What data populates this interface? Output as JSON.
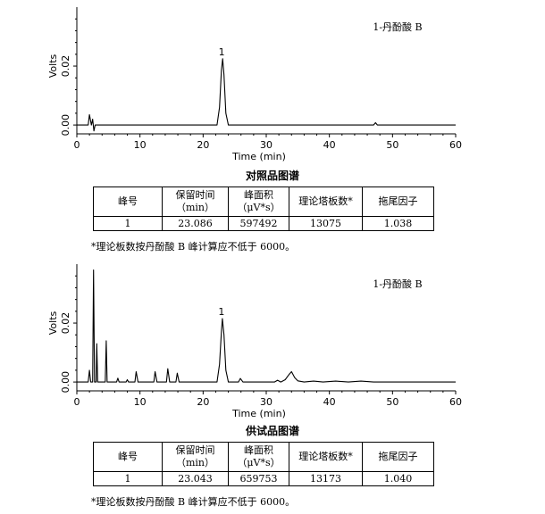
{
  "chart_data": [
    {
      "type": "line",
      "title": "1-丹酚酸 B",
      "xlabel": "Time (min)",
      "ylabel": "Volts",
      "xlim": [
        0,
        60
      ],
      "ylim": [
        -0.003,
        0.04
      ],
      "x_ticks": [
        "0",
        "10",
        "20",
        "30",
        "40",
        "50",
        "60"
      ],
      "y_ticks": [
        "0.00",
        "0.02"
      ],
      "peaks": [
        {
          "label": "1",
          "x": 23.086,
          "y": 0.0225
        }
      ],
      "series": [
        {
          "values": [
            [
              0,
              0.0
            ],
            [
              1.8,
              0.0
            ],
            [
              2.0,
              0.0035
            ],
            [
              2.3,
              0.0
            ],
            [
              2.5,
              0.002
            ],
            [
              2.7,
              -0.002
            ],
            [
              2.9,
              0.0
            ],
            [
              22.2,
              0.0
            ],
            [
              22.6,
              0.006
            ],
            [
              22.9,
              0.0185
            ],
            [
              23.1,
              0.0225
            ],
            [
              23.3,
              0.017
            ],
            [
              23.6,
              0.004
            ],
            [
              24.0,
              0.0
            ],
            [
              47.0,
              0.0
            ],
            [
              47.3,
              0.0008
            ],
            [
              47.6,
              0.0
            ],
            [
              60,
              0.0
            ]
          ]
        }
      ]
    },
    {
      "type": "line",
      "title": "1-丹酚酸 B",
      "xlabel": "Time (min)",
      "ylabel": "Volts",
      "xlim": [
        0,
        60
      ],
      "ylim": [
        -0.003,
        0.04
      ],
      "x_ticks": [
        "0",
        "10",
        "20",
        "30",
        "40",
        "50",
        "60"
      ],
      "y_ticks": [
        "0.00",
        "0.02"
      ],
      "peaks": [
        {
          "label": "1",
          "x": 23.043,
          "y": 0.0215
        }
      ],
      "series": [
        {
          "values": [
            [
              0,
              0.0
            ],
            [
              1.8,
              0.0
            ],
            [
              2.0,
              0.004
            ],
            [
              2.2,
              0.0
            ],
            [
              2.5,
              0.0
            ],
            [
              2.65,
              0.038
            ],
            [
              2.8,
              0.0
            ],
            [
              3.05,
              0.0
            ],
            [
              3.15,
              0.013
            ],
            [
              3.3,
              0.0
            ],
            [
              4.5,
              0.0
            ],
            [
              4.65,
              0.014
            ],
            [
              4.8,
              0.0
            ],
            [
              6.3,
              0.0
            ],
            [
              6.5,
              0.0013
            ],
            [
              6.7,
              0.0
            ],
            [
              7.8,
              0.0
            ],
            [
              8.0,
              0.0008
            ],
            [
              8.2,
              0.0
            ],
            [
              9.2,
              0.0
            ],
            [
              9.4,
              0.0035
            ],
            [
              9.7,
              0.0
            ],
            [
              12.2,
              0.0
            ],
            [
              12.4,
              0.0035
            ],
            [
              12.7,
              0.0
            ],
            [
              14.2,
              0.0
            ],
            [
              14.4,
              0.0045
            ],
            [
              14.7,
              0.0
            ],
            [
              15.7,
              0.0
            ],
            [
              15.9,
              0.003
            ],
            [
              16.2,
              0.0
            ],
            [
              22.2,
              0.0
            ],
            [
              22.6,
              0.006
            ],
            [
              22.9,
              0.017
            ],
            [
              23.05,
              0.0215
            ],
            [
              23.3,
              0.016
            ],
            [
              23.6,
              0.004
            ],
            [
              24.0,
              0.0
            ],
            [
              25.6,
              0.0
            ],
            [
              25.9,
              0.0012
            ],
            [
              26.3,
              0.0
            ],
            [
              31.3,
              0.0
            ],
            [
              31.8,
              0.0006
            ],
            [
              32.3,
              0.0
            ],
            [
              33.0,
              0.0008
            ],
            [
              33.6,
              0.0025
            ],
            [
              34.0,
              0.0035
            ],
            [
              34.5,
              0.0015
            ],
            [
              35.0,
              0.0004
            ],
            [
              36.0,
              0.0
            ],
            [
              37.5,
              0.0003
            ],
            [
              39.0,
              0.0
            ],
            [
              41.0,
              0.0003
            ],
            [
              43.0,
              0.0
            ],
            [
              45.0,
              0.0003
            ],
            [
              47.0,
              0.0
            ],
            [
              60,
              0.0
            ]
          ]
        }
      ]
    }
  ],
  "sections": [
    {
      "caption": "对照品图谱",
      "table": {
        "headers": [
          [
            "峰号"
          ],
          [
            "保留时间",
            "（min）"
          ],
          [
            "峰面积",
            "（μV*s）"
          ],
          [
            "理论塔板数*"
          ],
          [
            "拖尾因子"
          ]
        ],
        "row": [
          "1",
          "23.086",
          "597492",
          "13075",
          "1.038"
        ]
      },
      "note": "*理论板数按丹酚酸 B 峰计算应不低于 6000。"
    },
    {
      "caption": "供试品图谱",
      "table": {
        "headers": [
          [
            "峰号"
          ],
          [
            "保留时间",
            "（min）"
          ],
          [
            "峰面积",
            "（μV*s）"
          ],
          [
            "理论塔板数*"
          ],
          [
            "拖尾因子"
          ]
        ],
        "row": [
          "1",
          "23.043",
          "659753",
          "13173",
          "1.040"
        ]
      },
      "note": "*理论板数按丹酚酸 B 峰计算应不低于 6000。"
    }
  ]
}
